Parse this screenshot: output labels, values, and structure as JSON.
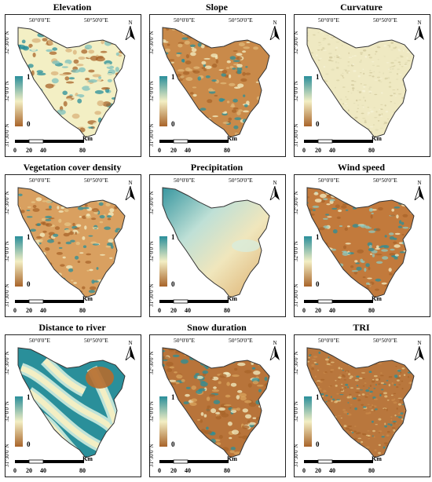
{
  "panels": [
    {
      "title": "Elevation",
      "coord_top_left": "50°0'0\"E",
      "coord_top_right": "50°50'0\"E",
      "lat_labels": [
        "32°30'0\"N",
        "32°0'0\"N",
        "31°30'0\"N"
      ],
      "north": "N",
      "legend_hi": "1",
      "legend_lo": "0",
      "scale_unit": "Km",
      "scale_ticks": [
        "0",
        "20",
        "40",
        "80"
      ],
      "pattern": "elevation"
    },
    {
      "title": "Slope",
      "coord_top_left": "50°0'0\"E",
      "coord_top_right": "50°50'0\"E",
      "lat_labels": [
        "32°30'0\"N",
        "32°0'0\"N",
        "31°30'0\"N"
      ],
      "north": "N",
      "legend_hi": "1",
      "legend_lo": "0",
      "scale_unit": "Km",
      "scale_ticks": [
        "0",
        "20",
        "40",
        "80"
      ],
      "pattern": "slope"
    },
    {
      "title": "Curvature",
      "coord_top_left": "50°0'0\"E",
      "coord_top_right": "50°50'0\"E",
      "lat_labels": [
        "32°30'0\"N",
        "32°0'0\"N",
        "31°30'0\"N"
      ],
      "north": "N",
      "legend_hi": "1",
      "legend_lo": "0",
      "scale_unit": "Km",
      "scale_ticks": [
        "0",
        "20",
        "40",
        "80"
      ],
      "pattern": "curvature"
    },
    {
      "title": "Vegetation cover density",
      "coord_top_left": "50°0'0\"E",
      "coord_top_right": "50°50'0\"E",
      "lat_labels": [
        "32°30'0\"N",
        "32°0'0\"N",
        "31°30'0\"N"
      ],
      "north": "N",
      "legend_hi": "1",
      "legend_lo": "0",
      "scale_unit": "Km",
      "scale_ticks": [
        "0",
        "20",
        "40",
        "80"
      ],
      "pattern": "vegetation"
    },
    {
      "title": "Precipitation",
      "coord_top_left": "50°0'0\"E",
      "coord_top_right": "50°50'0\"E",
      "lat_labels": [
        "32°30'0\"N",
        "32°0'0\"N",
        "31°30'0\"N"
      ],
      "north": "N",
      "legend_hi": "1",
      "legend_lo": "0",
      "scale_unit": "Km",
      "scale_ticks": [
        "0",
        "20",
        "40",
        "80"
      ],
      "pattern": "precipitation"
    },
    {
      "title": "Wind speed",
      "coord_top_left": "50°0'0\"E",
      "coord_top_right": "50°50'0\"E",
      "lat_labels": [
        "32°30'0\"N",
        "32°0'0\"N",
        "31°30'0\"N"
      ],
      "north": "N",
      "legend_hi": "1",
      "legend_lo": "0",
      "scale_unit": "Km",
      "scale_ticks": [
        "0",
        "20",
        "40",
        "80"
      ],
      "pattern": "wind"
    },
    {
      "title": "Distance to river",
      "coord_top_left": "50°0'0\"E",
      "coord_top_right": "50°50'0\"E",
      "lat_labels": [
        "32°30'0\"N",
        "32°0'0\"N",
        "31°30'0\"N"
      ],
      "north": "N",
      "legend_hi": "1",
      "legend_lo": "0",
      "scale_unit": "Km",
      "scale_ticks": [
        "0",
        "20",
        "40",
        "80"
      ],
      "pattern": "river"
    },
    {
      "title": "Snow duration",
      "coord_top_left": "50°0'0\"E",
      "coord_top_right": "50°50'0\"E",
      "lat_labels": [
        "32°30'0\"N",
        "32°0'0\"N",
        "31°30'0\"N"
      ],
      "north": "N",
      "legend_hi": "1",
      "legend_lo": "0",
      "scale_unit": "Km",
      "scale_ticks": [
        "0",
        "20",
        "40",
        "80"
      ],
      "pattern": "snow"
    },
    {
      "title": "TRI",
      "coord_top_left": "50°0'0\"E",
      "coord_top_right": "50°50'0\"E",
      "lat_labels": [
        "32°30'0\"N",
        "32°0'0\"N",
        "31°30'0\"N"
      ],
      "north": "N",
      "legend_hi": "1",
      "legend_lo": "0",
      "scale_unit": "Km",
      "scale_ticks": [
        "0",
        "20",
        "40",
        "80"
      ],
      "pattern": "tri"
    }
  ],
  "colors": {
    "high": "#2a8f9a",
    "mid": "#f3efc4",
    "low": "#a8642a"
  }
}
